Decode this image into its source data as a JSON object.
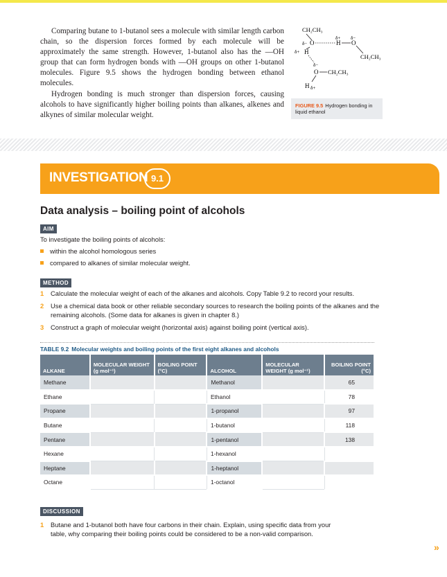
{
  "intro": {
    "p1": "Comparing butane to 1-butanol sees a molecule with similar length carbon chain, so the dispersion forces formed by each molecule will be approximately the same strength. However, 1-butanol also has the —OH group that can form hydrogen bonds with —OH groups on other 1-butanol molecules. Figure 9.5 shows the hydrogen bonding between ethanol molecules.",
    "p2": "Hydrogen bonding is much stronger than dispersion forces, causing alcohols to have significantly higher boiling points than alkanes, alkenes and alkynes of similar molecular weight."
  },
  "figure": {
    "number": "FIGURE 9.5",
    "caption": "Hydrogen bonding in liquid ethanol",
    "labels": {
      "ch2ch3_top": "CH₂CH₃",
      "ch2ch3_right": "CH₂CH₃",
      "ch2ch3_bottom": "CH₂CH₃",
      "o": "O",
      "h": "H",
      "delta_minus": "δ−",
      "delta_plus": "δ+"
    }
  },
  "investigation": {
    "label": "INVESTIGATION",
    "number": "9.1",
    "title": "Data analysis – boiling point of alcohols"
  },
  "aim": {
    "tag": "AIM",
    "intro": "To investigate the boiling points of alcohols:",
    "bullets": [
      "within the alcohol homologous series",
      "compared to alkanes of similar molecular weight."
    ]
  },
  "method": {
    "tag": "METHOD",
    "steps": [
      {
        "n": "1",
        "text": "Calculate the molecular weight of each of the alkanes and alcohols. Copy Table 9.2 to record your results."
      },
      {
        "n": "2",
        "text": "Use a chemical data book or other reliable secondary sources to research the boiling points of the alkanes and the remaining alcohols. (Some data for alkanes is given in chapter 8.)"
      },
      {
        "n": "3",
        "text": "Construct a graph of molecular weight (horizontal axis) against boiling point (vertical axis)."
      }
    ]
  },
  "table": {
    "number": "TABLE 9.2",
    "caption": "Molecular weights and boiling points of the first eight alkanes and alcohols",
    "headers": {
      "alkane": "ALKANE",
      "mw": "MOLECULAR WEIGHT (g mol⁻¹)",
      "bp": "BOILING POINT (°C)",
      "alcohol": "ALCOHOL"
    },
    "rows": [
      {
        "alkane": "Methane",
        "alcohol": "Methanol",
        "bp": "65"
      },
      {
        "alkane": "Ethane",
        "alcohol": "Ethanol",
        "bp": "78"
      },
      {
        "alkane": "Propane",
        "alcohol": "1-propanol",
        "bp": "97"
      },
      {
        "alkane": "Butane",
        "alcohol": "1-butanol",
        "bp": "118"
      },
      {
        "alkane": "Pentane",
        "alcohol": "1-pentanol",
        "bp": "138"
      },
      {
        "alkane": "Hexane",
        "alcohol": "1-hexanol",
        "bp": ""
      },
      {
        "alkane": "Heptane",
        "alcohol": "1-heptanol",
        "bp": ""
      },
      {
        "alkane": "Octane",
        "alcohol": "1-octanol",
        "bp": ""
      }
    ]
  },
  "discussion": {
    "tag": "DISCUSSION",
    "questions": [
      {
        "n": "1",
        "text": "Butane and 1-butanol both have four carbons in their chain. Explain, using specific data from your table, why comparing their boiling points could be considered to be a non-valid comparison."
      }
    ]
  },
  "nav": {
    "next": "»"
  },
  "colors": {
    "accent": "#f7a11a",
    "tag": "#4a5563",
    "table_header": "#6d7e8e",
    "caption_blue": "#1e5a86",
    "figure_red": "#e8591a"
  }
}
